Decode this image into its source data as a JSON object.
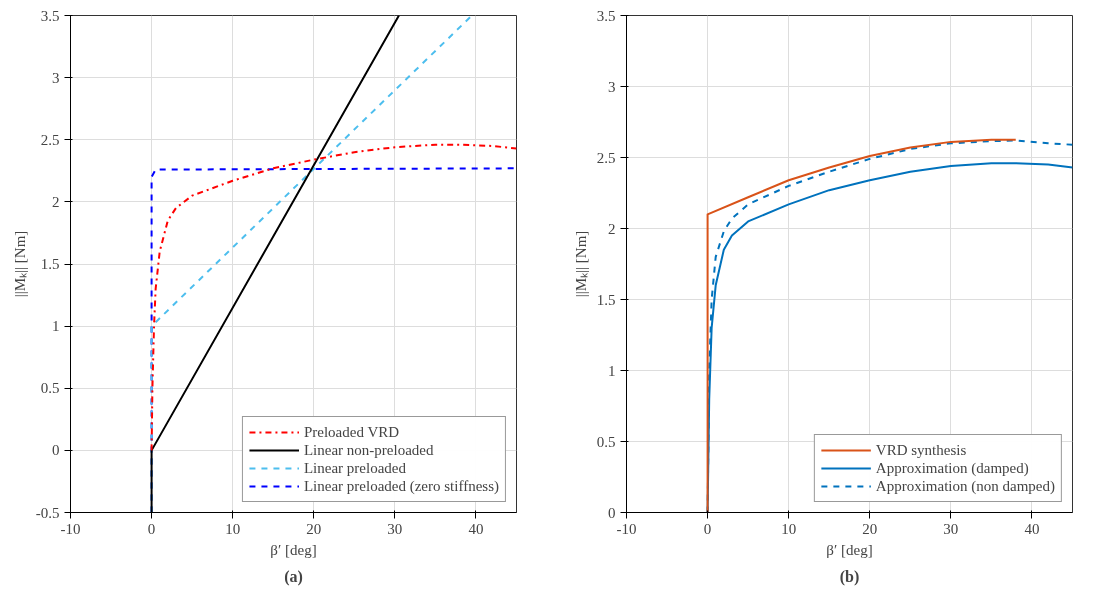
{
  "chart_data": [
    {
      "type": "line",
      "xlabel": "β′ [deg]",
      "ylabel": "||Mₖ|| [Nm]",
      "xlim": [
        -10,
        45
      ],
      "ylim": [
        -0.5,
        3.5
      ],
      "xticks": [
        -10,
        0,
        10,
        20,
        30,
        40
      ],
      "yticks": [
        -0.5,
        0,
        0.5,
        1,
        1.5,
        2,
        2.5,
        3,
        3.5
      ],
      "grid": true,
      "legend": "bottom right",
      "annotations": [
        "(a)"
      ],
      "series": [
        {
          "name": "Preloaded VRD",
          "color": "#ff0000",
          "line_style": "dashdot",
          "x": [
            0,
            0.1,
            0.3,
            0.5,
            1,
            2,
            3,
            5,
            10,
            15,
            20,
            25,
            30,
            35,
            38,
            42,
            45
          ],
          "values": [
            0,
            0.5,
            1.0,
            1.3,
            1.6,
            1.85,
            1.95,
            2.05,
            2.17,
            2.27,
            2.34,
            2.4,
            2.44,
            2.46,
            2.46,
            2.45,
            2.43
          ]
        },
        {
          "name": "Linear non-preloaded",
          "color": "#000000",
          "line_style": "solid",
          "x": [
            0,
            0,
            30.5
          ],
          "values": [
            -0.5,
            0,
            3.5
          ]
        },
        {
          "name": "Linear preloaded",
          "color": "#4dbeee",
          "line_style": "dashed",
          "x": [
            0,
            0,
            39.5
          ],
          "values": [
            -0.5,
            1,
            3.5
          ]
        },
        {
          "name": "Linear preloaded (zero stiffness)",
          "color": "#0000ff",
          "line_style": "dashed",
          "x": [
            0,
            0,
            0.5,
            45
          ],
          "values": [
            -0.5,
            2.2,
            2.26,
            2.27
          ]
        }
      ]
    },
    {
      "type": "line",
      "xlabel": "β′ [deg]",
      "ylabel": "||Mₖ|| [Nm]",
      "xlim": [
        -10,
        45
      ],
      "ylim": [
        0,
        3.5
      ],
      "xticks": [
        -10,
        0,
        10,
        20,
        30,
        40
      ],
      "yticks": [
        0,
        0.5,
        1,
        1.5,
        2,
        2.5,
        3,
        3.5
      ],
      "grid": true,
      "legend": "bottom right",
      "annotations": [
        "(b)"
      ],
      "series": [
        {
          "name": "VRD synthesis",
          "color": "#d95319",
          "line_style": "solid",
          "x": [
            0,
            0,
            5,
            10,
            15,
            20,
            25,
            30,
            35,
            38
          ],
          "values": [
            0,
            2.1,
            2.22,
            2.34,
            2.43,
            2.51,
            2.57,
            2.61,
            2.625,
            2.625
          ]
        },
        {
          "name": "Approximation (damped)",
          "color": "#0072bd",
          "line_style": "solid",
          "x": [
            0,
            0.2,
            0.5,
            1,
            2,
            3,
            5,
            10,
            15,
            20,
            25,
            30,
            35,
            38,
            42,
            45
          ],
          "values": [
            0,
            0.8,
            1.3,
            1.6,
            1.85,
            1.95,
            2.05,
            2.17,
            2.27,
            2.34,
            2.4,
            2.44,
            2.46,
            2.46,
            2.45,
            2.43
          ]
        },
        {
          "name": "Approximation (non damped)",
          "color": "#0072bd",
          "line_style": "dashed",
          "x": [
            0,
            0.2,
            0.5,
            1,
            2,
            3,
            5,
            10,
            15,
            20,
            25,
            30,
            35,
            38,
            42,
            45
          ],
          "values": [
            0,
            1.0,
            1.5,
            1.8,
            1.98,
            2.07,
            2.17,
            2.3,
            2.4,
            2.49,
            2.56,
            2.6,
            2.615,
            2.62,
            2.6,
            2.59
          ]
        }
      ]
    }
  ]
}
